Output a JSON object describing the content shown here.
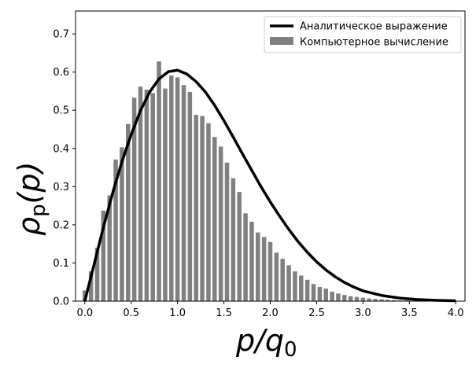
{
  "chart_data": {
    "type": "bar",
    "xlabel": {
      "main": "p/q",
      "sub": "0"
    },
    "ylabel": {
      "main": "ρ",
      "sub": "p",
      "tail": "(p)"
    },
    "xlim": [
      -0.1,
      4.1
    ],
    "ylim": [
      0,
      0.76
    ],
    "xticks": [
      "0.0",
      "0.5",
      "1.0",
      "1.5",
      "2.0",
      "2.5",
      "3.0",
      "3.5",
      "4.0"
    ],
    "xtick_values": [
      0.0,
      0.5,
      1.0,
      1.5,
      2.0,
      2.5,
      3.0,
      3.5,
      4.0
    ],
    "yticks": [
      "0.0",
      "0.1",
      "0.2",
      "0.3",
      "0.4",
      "0.5",
      "0.6",
      "0.7"
    ],
    "ytick_values": [
      0.0,
      0.1,
      0.2,
      0.3,
      0.4,
      0.5,
      0.6,
      0.7
    ],
    "grid": false,
    "legend_placement": "top-right",
    "series": [
      {
        "name": "Аналитическое выражение",
        "kind": "line",
        "color": "#000000",
        "x": [
          0.0,
          0.1,
          0.2,
          0.3,
          0.4,
          0.5,
          0.6,
          0.7,
          0.8,
          0.9,
          1.0,
          1.1,
          1.2,
          1.3,
          1.4,
          1.5,
          1.6,
          1.7,
          1.8,
          1.9,
          2.0,
          2.1,
          2.2,
          2.3,
          2.4,
          2.5,
          2.6,
          2.7,
          2.8,
          2.9,
          3.0,
          3.2,
          3.4,
          3.6,
          3.8,
          4.0
        ],
        "y": [
          0.0,
          0.096,
          0.193,
          0.283,
          0.365,
          0.436,
          0.499,
          0.548,
          0.582,
          0.601,
          0.605,
          0.595,
          0.575,
          0.548,
          0.513,
          0.473,
          0.43,
          0.386,
          0.343,
          0.3,
          0.26,
          0.223,
          0.188,
          0.156,
          0.128,
          0.103,
          0.082,
          0.064,
          0.049,
          0.037,
          0.027,
          0.015,
          0.008,
          0.004,
          0.002,
          0.001
        ]
      },
      {
        "name": "Компьютерное вычисление",
        "kind": "bar",
        "color": "#808080",
        "x": [
          0.0,
          0.0667,
          0.1333,
          0.2,
          0.2667,
          0.3333,
          0.4,
          0.4667,
          0.5333,
          0.6,
          0.6667,
          0.7333,
          0.8,
          0.8667,
          0.9333,
          1.0,
          1.0667,
          1.1333,
          1.2,
          1.2667,
          1.3333,
          1.4,
          1.4667,
          1.5333,
          1.6,
          1.6667,
          1.7333,
          1.8,
          1.8667,
          1.9333,
          2.0,
          2.0667,
          2.1333,
          2.2,
          2.2667,
          2.3333,
          2.4,
          2.4667,
          2.5333,
          2.6,
          2.6667,
          2.7333,
          2.8,
          2.8667,
          2.9333,
          3.0,
          3.0667,
          3.1333,
          3.2,
          3.2667,
          3.3333,
          3.4,
          3.4667,
          3.5333,
          3.6,
          3.6667,
          3.7333,
          3.8,
          3.8667,
          3.9333
        ],
        "y": [
          0.028,
          0.078,
          0.14,
          0.237,
          0.277,
          0.371,
          0.403,
          0.464,
          0.533,
          0.562,
          0.554,
          0.545,
          0.628,
          0.557,
          0.591,
          0.586,
          0.566,
          0.548,
          0.488,
          0.485,
          0.466,
          0.43,
          0.405,
          0.363,
          0.322,
          0.286,
          0.23,
          0.208,
          0.18,
          0.168,
          0.155,
          0.127,
          0.111,
          0.094,
          0.078,
          0.067,
          0.056,
          0.045,
          0.037,
          0.033,
          0.025,
          0.02,
          0.016,
          0.013,
          0.011,
          0.009,
          0.007,
          0.006,
          0.005,
          0.004,
          0.003,
          0.002,
          0.002,
          0.001,
          0.001,
          0.001,
          0.001,
          0.0,
          0.0,
          0.0
        ]
      }
    ]
  }
}
